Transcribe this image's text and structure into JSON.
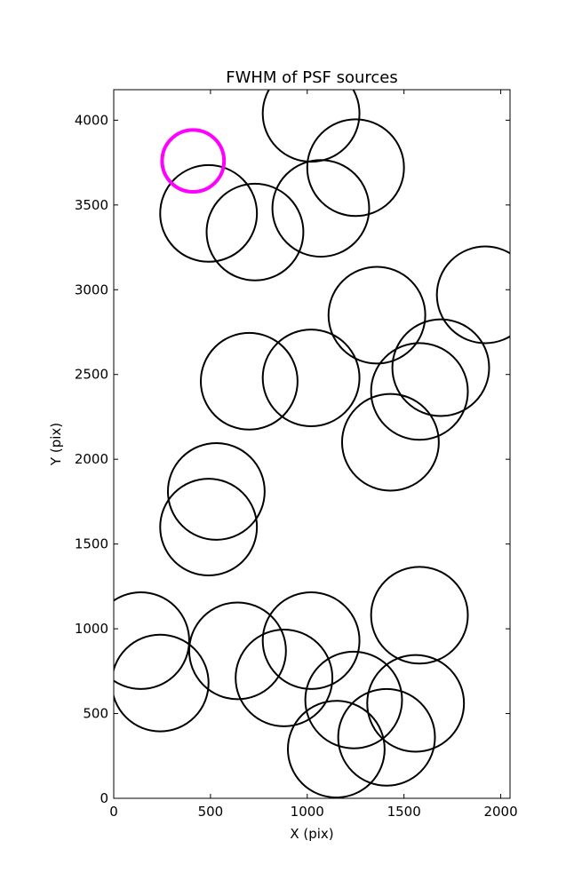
{
  "chart_data": {
    "type": "scatter",
    "title": "FWHM of PSF sources",
    "xlabel": "X (pix)",
    "ylabel": "Y (pix)",
    "xlim": [
      0,
      2048
    ],
    "ylim": [
      0,
      4180
    ],
    "xticks": [
      0,
      500,
      1000,
      1500,
      2000
    ],
    "yticks": [
      0,
      500,
      1000,
      1500,
      2000,
      2500,
      3000,
      3500,
      4000
    ],
    "marker": "circle (radius proportional to FWHM)",
    "series": [
      {
        "color": "#000000",
        "points": [
          {
            "x": 1020,
            "y": 4040,
            "r": 250
          },
          {
            "x": 1250,
            "y": 3720,
            "r": 250
          },
          {
            "x": 490,
            "y": 3450,
            "r": 250
          },
          {
            "x": 730,
            "y": 3340,
            "r": 250
          },
          {
            "x": 1070,
            "y": 3480,
            "r": 250
          },
          {
            "x": 1920,
            "y": 2970,
            "r": 250
          },
          {
            "x": 1360,
            "y": 2850,
            "r": 250
          },
          {
            "x": 1690,
            "y": 2540,
            "r": 250
          },
          {
            "x": 700,
            "y": 2460,
            "r": 250
          },
          {
            "x": 1020,
            "y": 2480,
            "r": 250
          },
          {
            "x": 1580,
            "y": 2400,
            "r": 250
          },
          {
            "x": 1430,
            "y": 2100,
            "r": 250
          },
          {
            "x": 530,
            "y": 1810,
            "r": 250
          },
          {
            "x": 490,
            "y": 1600,
            "r": 250
          },
          {
            "x": 1580,
            "y": 1080,
            "r": 250
          },
          {
            "x": 140,
            "y": 930,
            "r": 250
          },
          {
            "x": 640,
            "y": 870,
            "r": 250
          },
          {
            "x": 1020,
            "y": 930,
            "r": 250
          },
          {
            "x": 240,
            "y": 680,
            "r": 250
          },
          {
            "x": 880,
            "y": 710,
            "r": 250
          },
          {
            "x": 1240,
            "y": 580,
            "r": 250
          },
          {
            "x": 1560,
            "y": 560,
            "r": 250
          },
          {
            "x": 1410,
            "y": 360,
            "r": 250
          },
          {
            "x": 1150,
            "y": 290,
            "r": 250
          }
        ]
      },
      {
        "color": "#ff00ff",
        "points": [
          {
            "x": 410,
            "y": 3760,
            "r": 160
          }
        ]
      }
    ]
  }
}
